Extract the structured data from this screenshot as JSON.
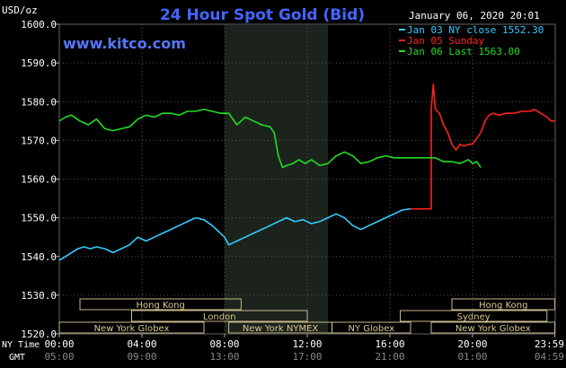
{
  "chart_data": {
    "type": "line",
    "title": "24 Hour Spot Gold (Bid)",
    "ylabel": "USD/oz",
    "timestamp": "January 06, 2020 20:01",
    "watermark": "www.kitco.com",
    "ylim": [
      1520,
      1600
    ],
    "y_ticks": [
      "1600.0",
      "1590.0",
      "1580.0",
      "1570.0",
      "1560.0",
      "1550.0",
      "1540.0",
      "1530.0",
      "1520.0"
    ],
    "x_row_labels": {
      "ny": "NY Time",
      "gmt": "GMT"
    },
    "x_ticks_ny": [
      "00:00",
      "04:00",
      "08:00",
      "12:00",
      "16:00",
      "20:00",
      "23:59"
    ],
    "x_ticks_gmt": [
      "05:00",
      "09:00",
      "13:00",
      "17:00",
      "21:00",
      "01:00",
      "04:59"
    ],
    "legend": [
      {
        "text": "Jan 03 NY close 1552.30",
        "color": "#33ccff"
      },
      {
        "text": "Jan 05 Sunday",
        "color": "#ff2020"
      },
      {
        "text": "Jan 06 Last 1563.00",
        "color": "#22dd22"
      }
    ],
    "session_shade": {
      "start_hour": 8.0,
      "end_hour": 13.0
    },
    "market_sessions": [
      {
        "label": "Hong Kong",
        "start": 1.0,
        "end": 8.8,
        "row": 0
      },
      {
        "label": "London",
        "start": 3.5,
        "end": 12.0,
        "row": 1
      },
      {
        "label": "New York Globex",
        "start": 0.0,
        "end": 7.0,
        "row": 2
      },
      {
        "label": "New York NYMEX",
        "start": 8.2,
        "end": 13.2,
        "row": 2
      },
      {
        "label": "NY Globex",
        "start": 13.2,
        "end": 17.0,
        "row": 2
      },
      {
        "label": "Hong Kong",
        "start": 19.0,
        "end": 23.98,
        "row": 0
      },
      {
        "label": "Sydney",
        "start": 16.5,
        "end": 23.6,
        "row": 1
      },
      {
        "label": "New York Globex",
        "start": 18.0,
        "end": 23.98,
        "row": 2
      }
    ],
    "series": [
      {
        "name": "Jan 03 NY close 1552.30",
        "color": "#33ccff",
        "x": [
          0,
          0.3,
          0.6,
          0.9,
          1.2,
          1.5,
          1.8,
          2.2,
          2.6,
          3.0,
          3.4,
          3.8,
          4.2,
          4.6,
          5.0,
          5.4,
          5.8,
          6.2,
          6.6,
          7.0,
          7.4,
          7.8,
          8.0,
          8.2,
          8.6,
          9.0,
          9.4,
          9.8,
          10.2,
          10.6,
          11.0,
          11.4,
          11.8,
          12.2,
          12.6,
          13.0,
          13.4,
          13.8,
          14.2,
          14.6,
          15.0,
          15.4,
          15.8,
          16.2,
          16.6,
          17.0
        ],
        "y": [
          1539,
          1540,
          1541,
          1542,
          1542.5,
          1542,
          1542.5,
          1542,
          1541,
          1542,
          1543,
          1545,
          1544,
          1545,
          1546,
          1547,
          1548,
          1549,
          1550,
          1549.5,
          1548,
          1546,
          1545,
          1543,
          1544,
          1545,
          1546,
          1547,
          1548,
          1549,
          1550,
          1549,
          1549.5,
          1548.5,
          1549,
          1550,
          1551,
          1550,
          1548,
          1547,
          1548,
          1549,
          1550,
          1551,
          1552,
          1552.3
        ]
      },
      {
        "name": "Jan 05 Sunday",
        "color": "#ff2020",
        "x": [
          17.0,
          18.0,
          18.0,
          18.1,
          18.2,
          18.4,
          18.6,
          18.8,
          19.0,
          19.2,
          19.4,
          19.6,
          19.8,
          20.0,
          20.4,
          20.6,
          20.8,
          21.0,
          21.3,
          21.6,
          22.0,
          22.4,
          22.8,
          23.0,
          23.3,
          23.6,
          23.8,
          24.0
        ],
        "y": [
          1552.3,
          1552.3,
          1578,
          1584.5,
          1578,
          1577,
          1574,
          1572,
          1569,
          1567.5,
          1569,
          1568.5,
          1569,
          1569,
          1572,
          1575,
          1576.5,
          1577,
          1576.5,
          1577,
          1577,
          1577.5,
          1577.5,
          1578,
          1577,
          1576,
          1575,
          1575
        ]
      },
      {
        "name": "Jan 06 Last 1563.00",
        "color": "#22dd22",
        "x": [
          0,
          0.3,
          0.6,
          1.0,
          1.4,
          1.8,
          2.2,
          2.6,
          3.0,
          3.4,
          3.8,
          4.2,
          4.6,
          5.0,
          5.4,
          5.8,
          6.2,
          6.6,
          7.0,
          7.4,
          7.8,
          8.2,
          8.6,
          9.0,
          9.4,
          9.8,
          10.2,
          10.4,
          10.6,
          10.8,
          11.0,
          11.3,
          11.6,
          11.9,
          12.2,
          12.6,
          13.0,
          13.4,
          13.8,
          14.2,
          14.6,
          15.0,
          15.4,
          15.8,
          16.2,
          16.6,
          17.0,
          17.4,
          17.8,
          18.2,
          18.6,
          19.0,
          19.4,
          19.8,
          20.0,
          20.2,
          20.4
        ],
        "y": [
          1575,
          1576,
          1576.5,
          1575,
          1574,
          1575.5,
          1573,
          1572.5,
          1573,
          1573.5,
          1575.5,
          1576.5,
          1576,
          1577,
          1577,
          1576.5,
          1577.5,
          1577.5,
          1578,
          1577.5,
          1577,
          1577,
          1574,
          1576,
          1575,
          1574,
          1573.5,
          1572,
          1566,
          1563,
          1563.5,
          1564,
          1565,
          1564,
          1565,
          1563.5,
          1564,
          1566,
          1567,
          1566,
          1564,
          1564.5,
          1565.5,
          1566,
          1565.5,
          1565.5,
          1565.5,
          1565.5,
          1565.5,
          1565.5,
          1564.5,
          1564.5,
          1564,
          1565,
          1564,
          1564.5,
          1563
        ]
      }
    ]
  }
}
